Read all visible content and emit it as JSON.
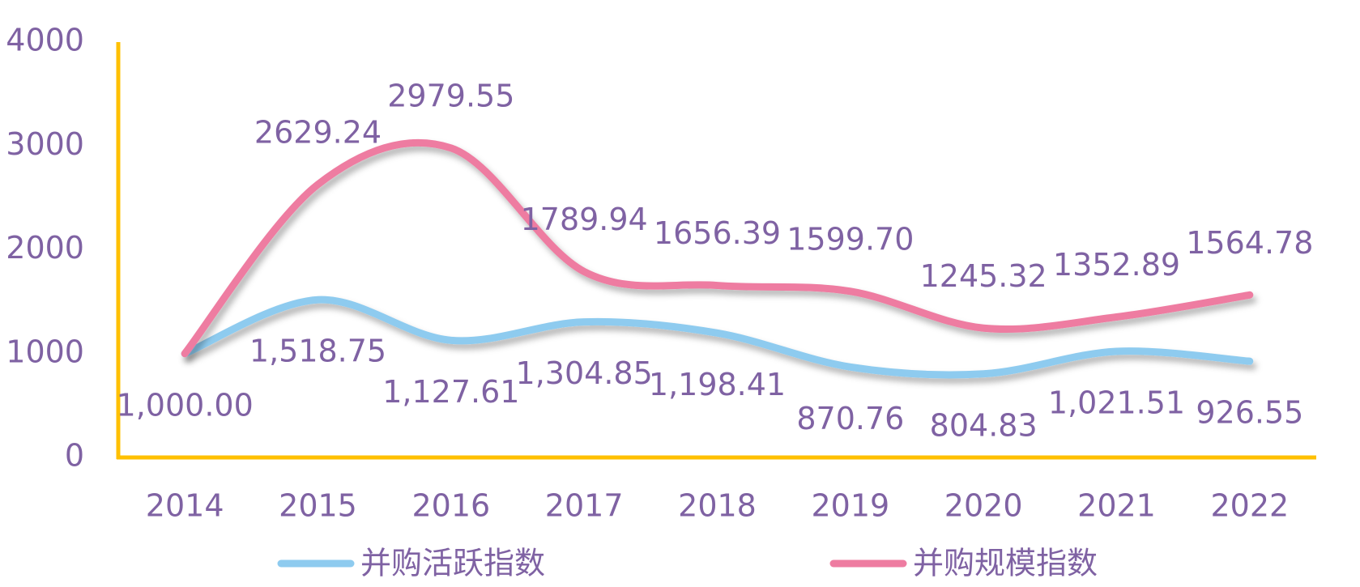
{
  "chart_data": {
    "type": "line",
    "categories": [
      "2014",
      "2015",
      "2016",
      "2017",
      "2018",
      "2019",
      "2020",
      "2021",
      "2022"
    ],
    "series": [
      {
        "name": "并购活跃指数",
        "color": "#8ecbef",
        "values": [
          1000,
          1518.75,
          1127.61,
          1304.85,
          1198.41,
          870.76,
          804.83,
          1021.51,
          926.55
        ],
        "value_labels": [
          "1,000.00",
          "1,518.75",
          "1,127.61",
          "1,304.85",
          "1,198.41",
          "870.76",
          "804.83",
          "1,021.51",
          "926.55"
        ]
      },
      {
        "name": "并购规模指数",
        "color": "#ee7ca1",
        "values": [
          1000,
          2629.24,
          2979.55,
          1789.94,
          1656.39,
          1599.7,
          1245.32,
          1352.89,
          1564.78
        ],
        "value_labels": [
          null,
          "2629.24",
          "2979.55",
          "1789.94",
          "1656.39",
          "1599.70",
          "1245.32",
          "1352.89",
          "1564.78"
        ]
      }
    ],
    "ylim": [
      0,
      4000
    ],
    "yticks": [
      0,
      1000,
      2000,
      3000,
      4000
    ],
    "axis_color": "#ffc000",
    "legend": "bottom",
    "grid": false
  }
}
